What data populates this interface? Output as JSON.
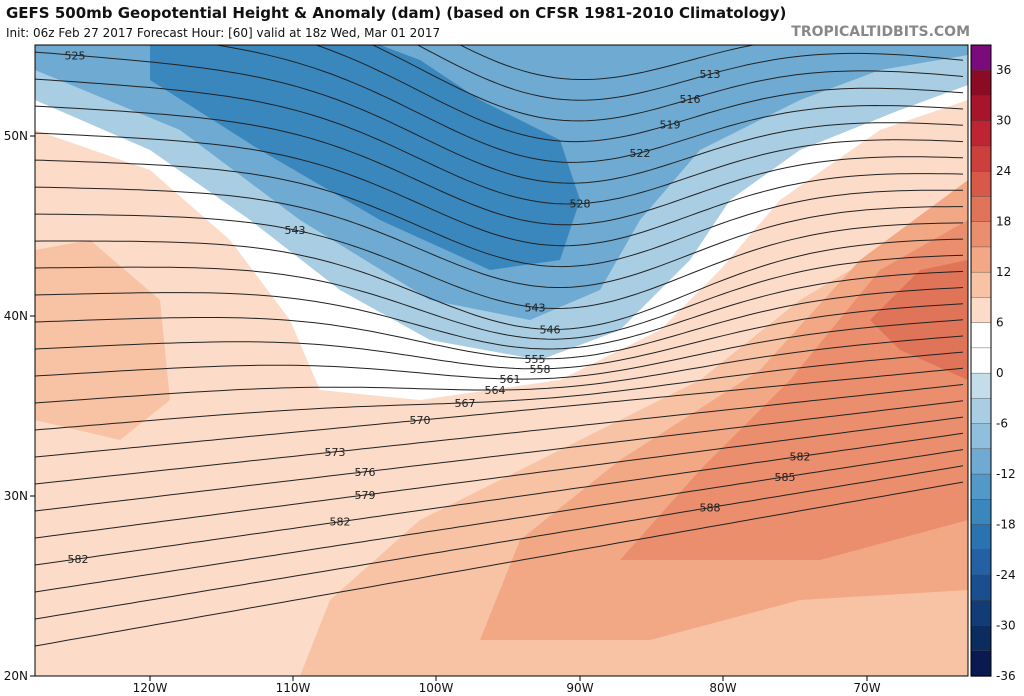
{
  "header": {
    "title": "GEFS 500mb Geopotential Height & Anomaly (dam) (based on CFSR 1981-2010 Climatology)",
    "subtitle": "Init: 06z Feb 27 2017   Forecast Hour: [60]   valid at 18z Wed, Mar 01 2017",
    "brand": "TROPICALTIDBITS.COM"
  },
  "map": {
    "lat_labels": [
      "50N",
      "40N",
      "30N",
      "20N"
    ],
    "lon_labels": [
      "120W",
      "110W",
      "100W",
      "90W",
      "80W",
      "70W"
    ],
    "contour_interval_dam": 3,
    "contour_labels": [
      "525",
      "513",
      "516",
      "519",
      "522",
      "528",
      "543",
      "543",
      "546",
      "555",
      "558",
      "561",
      "564",
      "567",
      "570",
      "573",
      "576",
      "579",
      "582",
      "582",
      "582",
      "585",
      "588"
    ]
  },
  "colorbar": {
    "tick_labels": [
      "36",
      "30",
      "24",
      "18",
      "12",
      "6",
      "0",
      "-6",
      "-12",
      "-18",
      "-24",
      "-30",
      "-36"
    ],
    "colors": [
      "#7b0a7b",
      "#8b0a24",
      "#a8142c",
      "#bf2432",
      "#cc3f3c",
      "#d75a48",
      "#e07458",
      "#ea8e6e",
      "#f2a884",
      "#f8c2a4",
      "#fcdcc8",
      "#ffffff",
      "#ffffff",
      "#c5dcea",
      "#a9cde3",
      "#8fbfdc",
      "#6eaad2",
      "#5299c8",
      "#3a87be",
      "#2b72b0",
      "#2460a4",
      "#1a4f8f",
      "#113c76",
      "#0b2c5e",
      "#0a1a50"
    ]
  }
}
